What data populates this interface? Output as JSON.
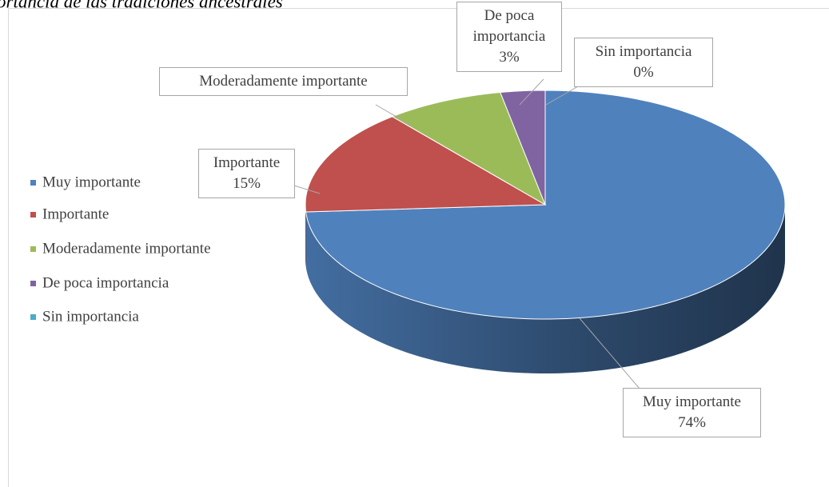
{
  "chart_data": {
    "type": "pie3d",
    "title": "ortancia de las tradiciones ancestrales",
    "categories": [
      "Muy importante",
      "Importante",
      "Moderadamente importante",
      "De poca importancia",
      "Sin importancia"
    ],
    "values": [
      74,
      15,
      8,
      3,
      0
    ],
    "value_labels": [
      "74%",
      "15%",
      null,
      "3%",
      "0%"
    ],
    "colors": [
      "#4f81bd",
      "#c0504d",
      "#9bbb59",
      "#8064a2",
      "#4bacc6"
    ],
    "legend": "left"
  }
}
